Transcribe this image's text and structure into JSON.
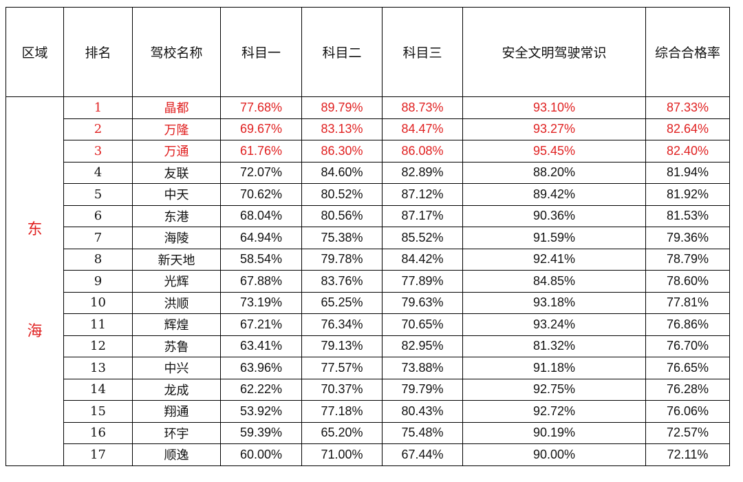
{
  "table": {
    "headers": {
      "region": "区域",
      "rank": "排名",
      "school": "驾校名称",
      "subject1": "科目一",
      "subject2": "科目二",
      "subject3": "科目三",
      "safety": "安全文明驾驶常识",
      "overall": "综合合格率"
    },
    "region": {
      "char1": "东",
      "char2": "海"
    },
    "highlight_color": "#e02020",
    "rows": [
      {
        "rank": "1",
        "school": "晶都",
        "s1": "77.68%",
        "s2": "89.79%",
        "s3": "88.73%",
        "safety": "93.10%",
        "overall": "87.33%",
        "highlight": true
      },
      {
        "rank": "2",
        "school": "万隆",
        "s1": "69.67%",
        "s2": "83.13%",
        "s3": "84.47%",
        "safety": "93.27%",
        "overall": "82.64%",
        "highlight": true
      },
      {
        "rank": "3",
        "school": "万通",
        "s1": "61.76%",
        "s2": "86.30%",
        "s3": "86.08%",
        "safety": "95.45%",
        "overall": "82.40%",
        "highlight": true
      },
      {
        "rank": "4",
        "school": "友联",
        "s1": "72.07%",
        "s2": "84.60%",
        "s3": "82.89%",
        "safety": "88.20%",
        "overall": "81.94%",
        "highlight": false
      },
      {
        "rank": "5",
        "school": "中天",
        "s1": "70.62%",
        "s2": "80.52%",
        "s3": "87.12%",
        "safety": "89.42%",
        "overall": "81.92%",
        "highlight": false
      },
      {
        "rank": "6",
        "school": "东港",
        "s1": "68.04%",
        "s2": "80.56%",
        "s3": "87.17%",
        "safety": "90.36%",
        "overall": "81.53%",
        "highlight": false
      },
      {
        "rank": "7",
        "school": "海陵",
        "s1": "64.94%",
        "s2": "75.38%",
        "s3": "85.52%",
        "safety": "91.59%",
        "overall": "79.36%",
        "highlight": false
      },
      {
        "rank": "8",
        "school": "新天地",
        "s1": "58.54%",
        "s2": "79.78%",
        "s3": "84.42%",
        "safety": "92.41%",
        "overall": "78.79%",
        "highlight": false
      },
      {
        "rank": "9",
        "school": "光辉",
        "s1": "67.88%",
        "s2": "83.76%",
        "s3": "77.89%",
        "safety": "84.85%",
        "overall": "78.60%",
        "highlight": false
      },
      {
        "rank": "10",
        "school": "洪顺",
        "s1": "73.19%",
        "s2": "65.25%",
        "s3": "79.63%",
        "safety": "93.18%",
        "overall": "77.81%",
        "highlight": false
      },
      {
        "rank": "11",
        "school": "辉煌",
        "s1": "67.21%",
        "s2": "76.34%",
        "s3": "70.65%",
        "safety": "93.24%",
        "overall": "76.86%",
        "highlight": false
      },
      {
        "rank": "12",
        "school": "苏鲁",
        "s1": "63.41%",
        "s2": "79.13%",
        "s3": "82.95%",
        "safety": "81.32%",
        "overall": "76.70%",
        "highlight": false
      },
      {
        "rank": "13",
        "school": "中兴",
        "s1": "63.96%",
        "s2": "77.57%",
        "s3": "73.88%",
        "safety": "91.18%",
        "overall": "76.65%",
        "highlight": false
      },
      {
        "rank": "14",
        "school": "龙成",
        "s1": "62.22%",
        "s2": "70.37%",
        "s3": "79.79%",
        "safety": "92.75%",
        "overall": "76.28%",
        "highlight": false
      },
      {
        "rank": "15",
        "school": "翔通",
        "s1": "53.92%",
        "s2": "77.18%",
        "s3": "80.43%",
        "safety": "92.72%",
        "overall": "76.06%",
        "highlight": false
      },
      {
        "rank": "16",
        "school": "环宇",
        "s1": "59.39%",
        "s2": "65.20%",
        "s3": "75.48%",
        "safety": "90.19%",
        "overall": "72.57%",
        "highlight": false
      },
      {
        "rank": "17",
        "school": "顺逸",
        "s1": "60.00%",
        "s2": "71.00%",
        "s3": "67.44%",
        "safety": "90.00%",
        "overall": "72.11%",
        "highlight": false
      }
    ]
  }
}
